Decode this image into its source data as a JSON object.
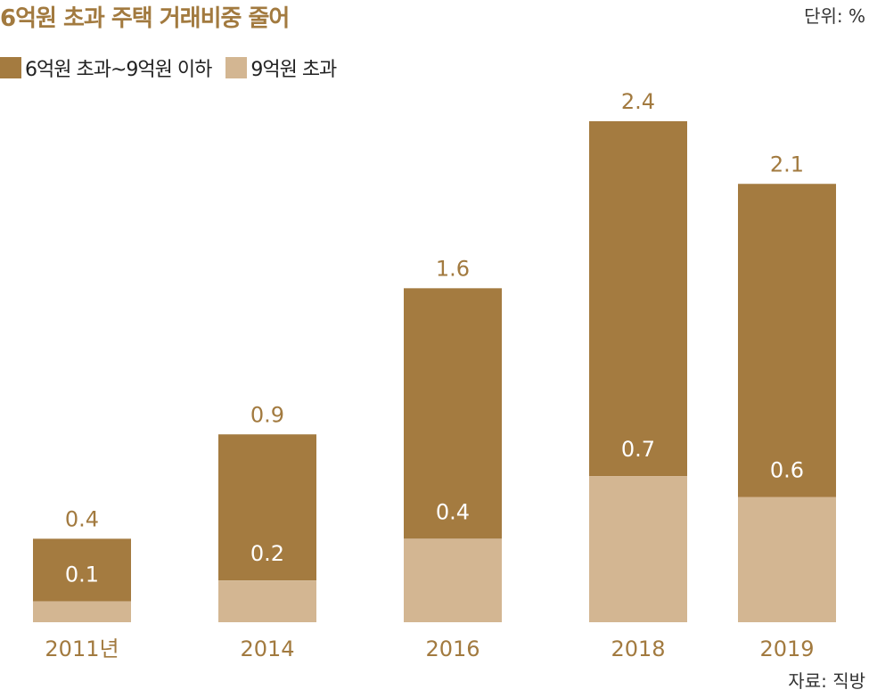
{
  "title": "6억원 초과 주택 거래비중 줄어",
  "unit": "단위: %",
  "source": "자료: 직방",
  "colors": {
    "title": "#a27a3f",
    "series1": "#a47b40",
    "series2": "#d3b692",
    "label_total": "#a27a3f",
    "label_inner": "#ffffff"
  },
  "chart_data": {
    "type": "bar",
    "stacked": true,
    "categories": [
      "2011년",
      "2014",
      "2016",
      "2018",
      "2019"
    ],
    "series": [
      {
        "name": "6억원 초과~9억원 이하",
        "values": [
          0.3,
          0.7,
          1.2,
          1.7,
          1.5
        ]
      },
      {
        "name": "9억원 초과",
        "values": [
          0.1,
          0.2,
          0.4,
          0.7,
          0.6
        ]
      }
    ],
    "totals": [
      0.4,
      0.9,
      1.6,
      2.4,
      2.1
    ],
    "total_labels": [
      "0.4",
      "0.9",
      "1.6",
      "2.4",
      "2.1"
    ],
    "inner_labels": [
      "0.1",
      "0.2",
      "0.4",
      "0.7",
      "0.6"
    ],
    "ylim": [
      0,
      2.4
    ],
    "grid": false,
    "legend": "top-left"
  }
}
